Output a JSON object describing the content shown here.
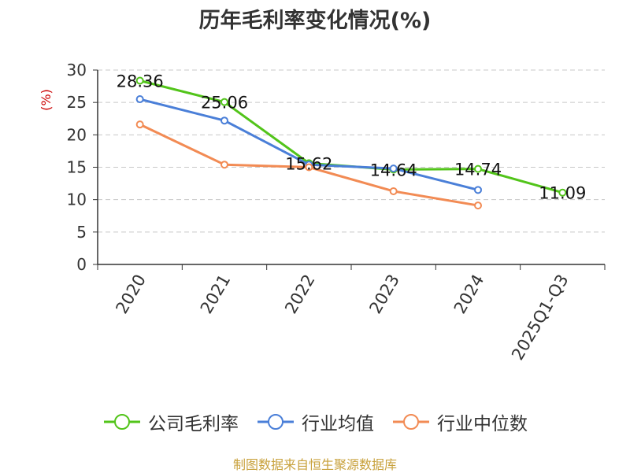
{
  "chart_data": {
    "type": "line",
    "title": "历年毛利率变化情况(%)",
    "ylabel": "(%)",
    "xlabel": "",
    "categories": [
      "2020",
      "2021",
      "2022",
      "2023",
      "2024",
      "2025Q1-Q3"
    ],
    "ylim": [
      0,
      30
    ],
    "yticks": [
      0,
      5,
      10,
      15,
      20,
      25,
      30
    ],
    "grid": true,
    "legend_position": "bottom",
    "series": [
      {
        "name": "公司毛利率",
        "color": "#52c41a",
        "values": [
          28.36,
          25.06,
          15.62,
          14.64,
          14.74,
          11.09
        ],
        "labels": [
          "28.36",
          "25.06",
          "15.62",
          "14.64",
          "14.74",
          "11.09"
        ]
      },
      {
        "name": "行业均值",
        "color": "#4a7fd8",
        "values": [
          25.5,
          22.2,
          15.4,
          14.8,
          11.5,
          null
        ]
      },
      {
        "name": "行业中位数",
        "color": "#f28b54",
        "values": [
          21.6,
          15.4,
          15.0,
          11.3,
          9.1,
          null
        ]
      }
    ]
  },
  "footer": {
    "source": "制图数据来自恒生聚源数据库"
  }
}
